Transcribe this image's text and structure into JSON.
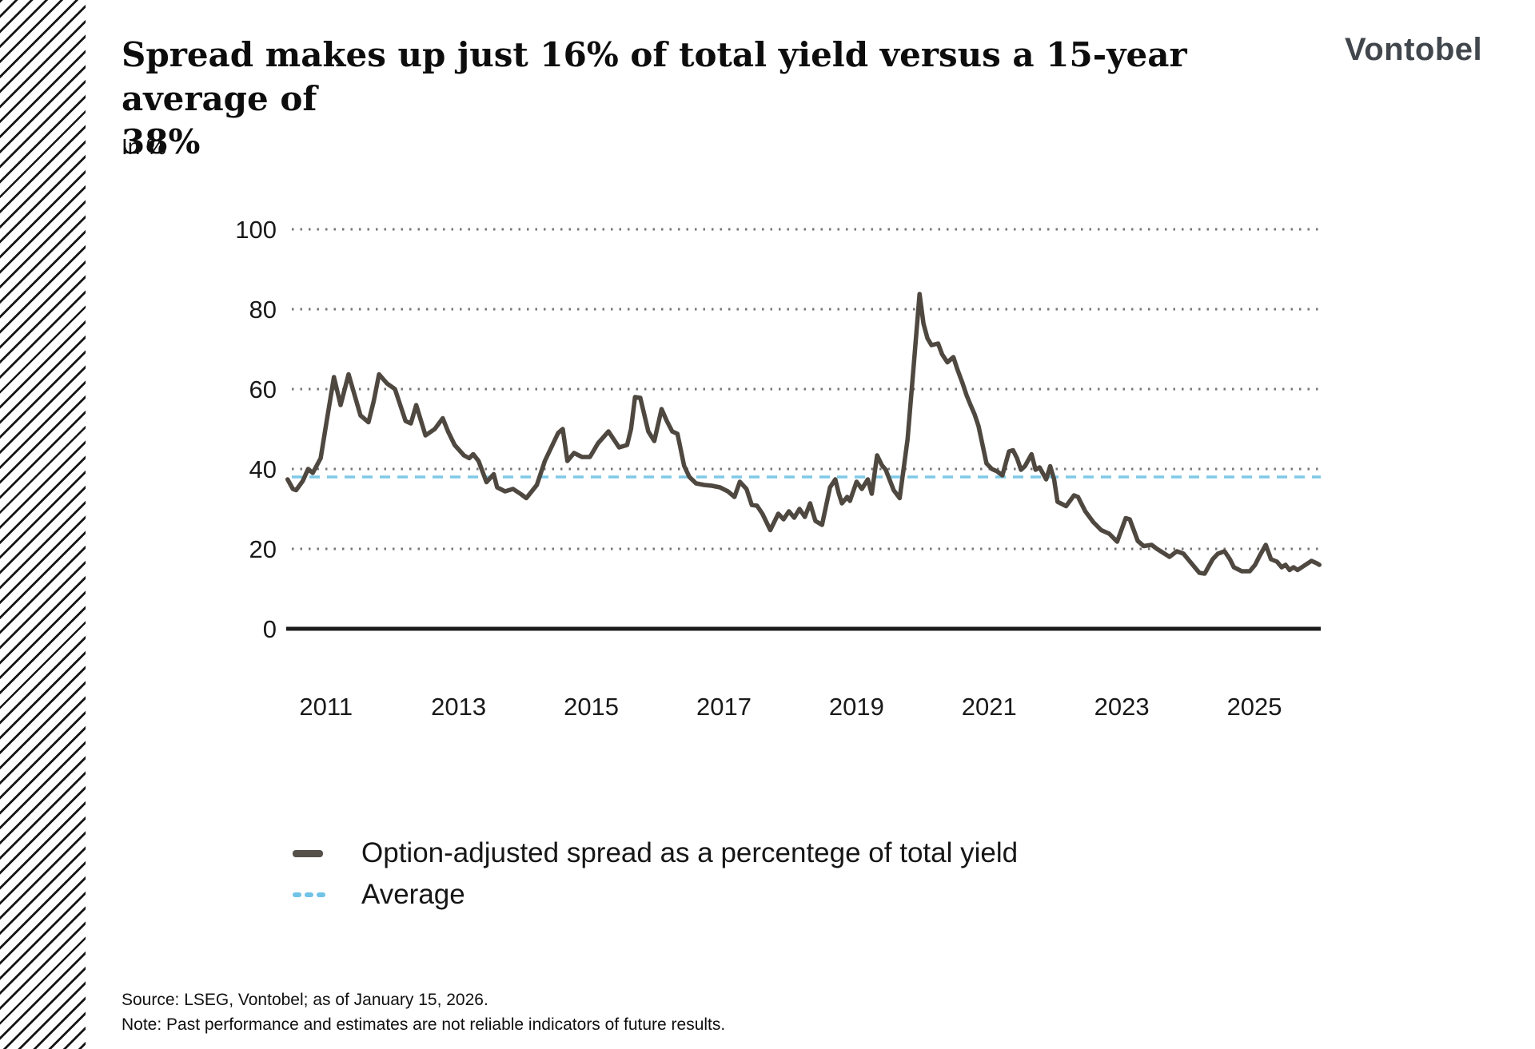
{
  "page": {
    "background": "#ffffff"
  },
  "decoration": {
    "hatch_color": "#161616"
  },
  "header": {
    "title_line1": "Spread makes up just 16% of total yield versus a 15-year average of",
    "title_line2": "38%",
    "subtitle": "In %"
  },
  "logo": {
    "text": "Vontobel",
    "color": "#41474c"
  },
  "chart_data": {
    "type": "line",
    "title": "Spread makes up just 16% of total yield versus a 15-year average of 38%",
    "ylabel": "In %",
    "xlabel": "",
    "ylim": [
      0,
      100
    ],
    "y_ticks": [
      0,
      20,
      40,
      60,
      80,
      100
    ],
    "x_ticks": [
      2011,
      2013,
      2015,
      2017,
      2019,
      2021,
      2023,
      2025
    ],
    "xlim": [
      2010.4,
      2026.0
    ],
    "grid": "horizontal-dotted",
    "grid_color": "#767676",
    "axis_color": "#1c1c1c",
    "legend_position": "bottom-left",
    "series": [
      {
        "name": "Option-adjusted spread as a percentege of total yield",
        "type": "line",
        "color": "#4e4840",
        "points": [
          [
            2010.42,
            37.4
          ],
          [
            2010.5,
            35
          ],
          [
            2010.55,
            34.7
          ],
          [
            2010.65,
            37
          ],
          [
            2010.73,
            40
          ],
          [
            2010.8,
            39
          ],
          [
            2010.92,
            42.7
          ],
          [
            2011.0,
            51
          ],
          [
            2011.12,
            63
          ],
          [
            2011.22,
            56
          ],
          [
            2011.34,
            63.7
          ],
          [
            2011.52,
            53.4
          ],
          [
            2011.64,
            51.7
          ],
          [
            2011.72,
            57
          ],
          [
            2011.8,
            63.7
          ],
          [
            2011.92,
            61.4
          ],
          [
            2012.04,
            60
          ],
          [
            2012.2,
            52
          ],
          [
            2012.28,
            51.4
          ],
          [
            2012.36,
            56
          ],
          [
            2012.5,
            48.4
          ],
          [
            2012.64,
            50
          ],
          [
            2012.76,
            52.7
          ],
          [
            2012.84,
            49.4
          ],
          [
            2012.94,
            46
          ],
          [
            2013.08,
            43.4
          ],
          [
            2013.16,
            42.7
          ],
          [
            2013.22,
            43.7
          ],
          [
            2013.3,
            42
          ],
          [
            2013.42,
            36.7
          ],
          [
            2013.53,
            38.7
          ],
          [
            2013.58,
            35.4
          ],
          [
            2013.7,
            34.4
          ],
          [
            2013.82,
            35
          ],
          [
            2013.94,
            33.7
          ],
          [
            2014.02,
            32.7
          ],
          [
            2014.18,
            36
          ],
          [
            2014.3,
            42
          ],
          [
            2014.5,
            49
          ],
          [
            2014.57,
            50
          ],
          [
            2014.64,
            42
          ],
          [
            2014.74,
            44
          ],
          [
            2014.86,
            43
          ],
          [
            2014.98,
            43
          ],
          [
            2015.1,
            46.4
          ],
          [
            2015.26,
            49.4
          ],
          [
            2015.42,
            45.4
          ],
          [
            2015.54,
            46
          ],
          [
            2015.6,
            50
          ],
          [
            2015.66,
            58
          ],
          [
            2015.74,
            57.8
          ],
          [
            2015.86,
            49.4
          ],
          [
            2015.95,
            47
          ],
          [
            2016.06,
            55
          ],
          [
            2016.14,
            52
          ],
          [
            2016.22,
            49.4
          ],
          [
            2016.3,
            48.8
          ],
          [
            2016.4,
            40.8
          ],
          [
            2016.48,
            38
          ],
          [
            2016.58,
            36.4
          ],
          [
            2016.7,
            36
          ],
          [
            2016.82,
            35.8
          ],
          [
            2016.94,
            35.4
          ],
          [
            2017.06,
            34.4
          ],
          [
            2017.16,
            33
          ],
          [
            2017.24,
            36.8
          ],
          [
            2017.34,
            35
          ],
          [
            2017.42,
            31
          ],
          [
            2017.5,
            30.8
          ],
          [
            2017.58,
            28.8
          ],
          [
            2017.7,
            24.7
          ],
          [
            2017.82,
            28.8
          ],
          [
            2017.9,
            27.4
          ],
          [
            2017.98,
            29.4
          ],
          [
            2018.06,
            27.8
          ],
          [
            2018.14,
            30
          ],
          [
            2018.22,
            28
          ],
          [
            2018.3,
            31.4
          ],
          [
            2018.38,
            27
          ],
          [
            2018.48,
            26
          ],
          [
            2018.6,
            35.4
          ],
          [
            2018.68,
            37.4
          ],
          [
            2018.73,
            34
          ],
          [
            2018.78,
            31.4
          ],
          [
            2018.86,
            33
          ],
          [
            2018.9,
            32
          ],
          [
            2019.0,
            36.8
          ],
          [
            2019.08,
            35
          ],
          [
            2019.17,
            37.4
          ],
          [
            2019.23,
            33.8
          ],
          [
            2019.31,
            43.4
          ],
          [
            2019.38,
            41
          ],
          [
            2019.44,
            39.8
          ],
          [
            2019.56,
            34.7
          ],
          [
            2019.65,
            32.7
          ],
          [
            2019.77,
            47.4
          ],
          [
            2019.87,
            67.4
          ],
          [
            2019.95,
            83.8
          ],
          [
            2020.01,
            76.4
          ],
          [
            2020.07,
            72.7
          ],
          [
            2020.13,
            71
          ],
          [
            2020.23,
            71.4
          ],
          [
            2020.29,
            68.7
          ],
          [
            2020.37,
            66.7
          ],
          [
            2020.46,
            68
          ],
          [
            2020.52,
            65
          ],
          [
            2020.6,
            61.4
          ],
          [
            2020.66,
            58.4
          ],
          [
            2020.72,
            56
          ],
          [
            2020.78,
            53.7
          ],
          [
            2020.84,
            50.7
          ],
          [
            2020.9,
            46
          ],
          [
            2020.96,
            41.4
          ],
          [
            2021.04,
            40
          ],
          [
            2021.12,
            39.4
          ],
          [
            2021.2,
            38.4
          ],
          [
            2021.3,
            44.4
          ],
          [
            2021.36,
            44.7
          ],
          [
            2021.42,
            42.7
          ],
          [
            2021.48,
            39.8
          ],
          [
            2021.54,
            40.7
          ],
          [
            2021.64,
            43.7
          ],
          [
            2021.7,
            39.8
          ],
          [
            2021.76,
            40.4
          ],
          [
            2021.86,
            37.4
          ],
          [
            2021.92,
            40.7
          ],
          [
            2021.98,
            37.4
          ],
          [
            2022.03,
            31.8
          ],
          [
            2022.16,
            30.7
          ],
          [
            2022.28,
            33.4
          ],
          [
            2022.34,
            33
          ],
          [
            2022.45,
            29.4
          ],
          [
            2022.57,
            26.7
          ],
          [
            2022.69,
            24.7
          ],
          [
            2022.81,
            23.8
          ],
          [
            2022.93,
            21.8
          ],
          [
            2023.06,
            27.7
          ],
          [
            2023.12,
            27.4
          ],
          [
            2023.24,
            22
          ],
          [
            2023.33,
            20.7
          ],
          [
            2023.45,
            21
          ],
          [
            2023.53,
            20
          ],
          [
            2023.72,
            18
          ],
          [
            2023.83,
            19.4
          ],
          [
            2023.93,
            18.8
          ],
          [
            2024.05,
            16.4
          ],
          [
            2024.17,
            14
          ],
          [
            2024.25,
            13.8
          ],
          [
            2024.37,
            17.4
          ],
          [
            2024.45,
            18.8
          ],
          [
            2024.55,
            19.4
          ],
          [
            2024.63,
            17.4
          ],
          [
            2024.69,
            15.4
          ],
          [
            2024.81,
            14.4
          ],
          [
            2024.93,
            14.4
          ],
          [
            2025.01,
            16
          ],
          [
            2025.07,
            18
          ],
          [
            2025.17,
            21
          ],
          [
            2025.25,
            17.4
          ],
          [
            2025.34,
            16.8
          ],
          [
            2025.41,
            15.4
          ],
          [
            2025.47,
            16
          ],
          [
            2025.53,
            14.7
          ],
          [
            2025.59,
            15.4
          ],
          [
            2025.65,
            14.7
          ],
          [
            2025.77,
            16
          ],
          [
            2025.86,
            17
          ],
          [
            2025.94,
            16.4
          ],
          [
            2025.98,
            16
          ]
        ]
      },
      {
        "name": "Average",
        "type": "constant-line",
        "style": "dashed",
        "color": "#7fc9e6",
        "value": 38
      }
    ]
  },
  "legend": {
    "items": [
      {
        "label": "Option-adjusted spread as a percentege of total yield",
        "marker_color": "#55504a"
      },
      {
        "label": "Average",
        "marker_color": "#70c3e6"
      }
    ]
  },
  "footer": {
    "source": "Source: LSEG, Vontobel; as of January 15, 2026.",
    "note": "Note: Past performance and estimates are not reliable indicators of future results."
  }
}
